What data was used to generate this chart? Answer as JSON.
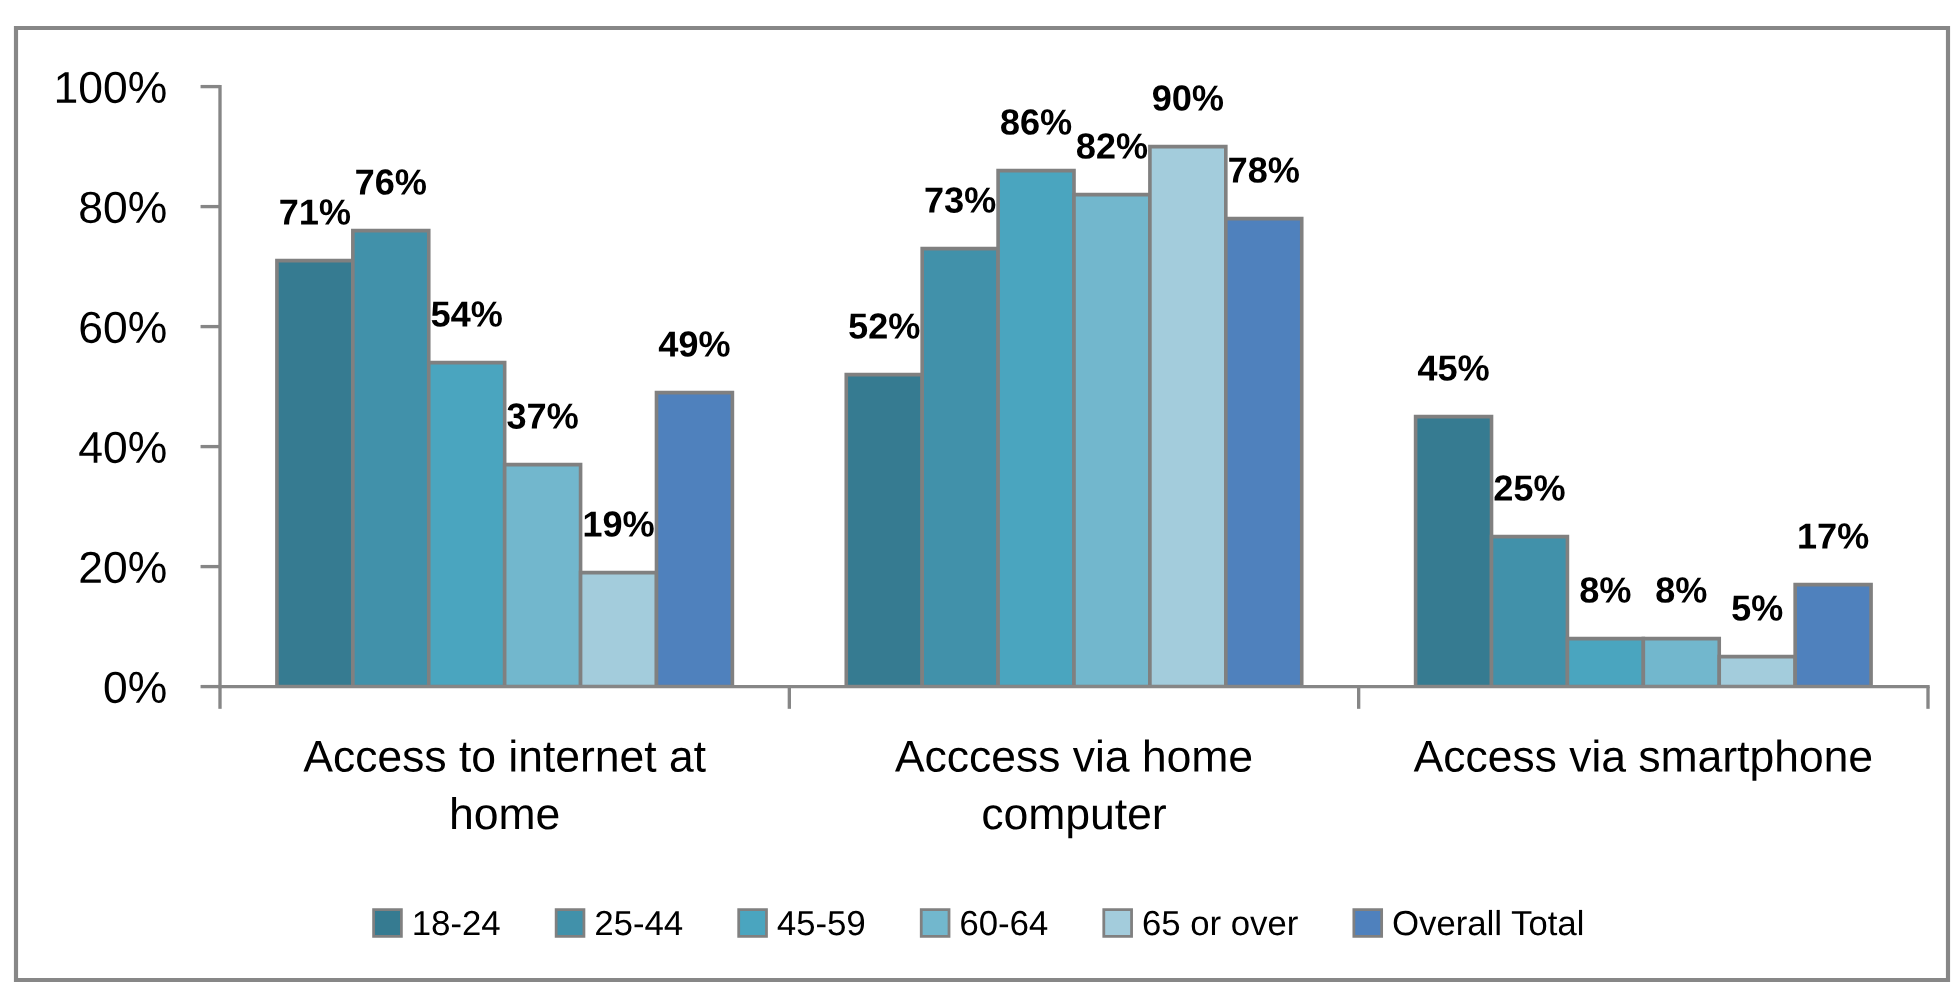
{
  "chart_data": {
    "type": "bar",
    "categories": [
      "Access to internet at home",
      "Acccess via home computer",
      "Access via smartphone"
    ],
    "series": [
      {
        "name": "18-24",
        "color": "#367b91",
        "values": [
          71,
          52,
          45
        ],
        "value_labels": [
          "71%",
          "52%",
          "45%"
        ]
      },
      {
        "name": "25-44",
        "color": "#4191aa",
        "values": [
          76,
          73,
          25
        ],
        "value_labels": [
          "76%",
          "73%",
          "25%"
        ]
      },
      {
        "name": "45-59",
        "color": "#4aa5bf",
        "values": [
          54,
          86,
          8
        ],
        "value_labels": [
          "54%",
          "86%",
          "8%"
        ]
      },
      {
        "name": "60-64",
        "color": "#72b7cd",
        "values": [
          37,
          82,
          8
        ],
        "value_labels": [
          "37%",
          "82%",
          "8%"
        ]
      },
      {
        "name": "65 or over",
        "color": "#a3ccdc",
        "values": [
          19,
          90,
          5
        ],
        "value_labels": [
          "19%",
          "90%",
          "5%"
        ]
      },
      {
        "name": "Overall Total",
        "color": "#4f81bd",
        "values": [
          49,
          78,
          17
        ],
        "value_labels": [
          "49%",
          "78%",
          "17%"
        ]
      }
    ],
    "ylim": [
      0,
      100
    ],
    "yticks": [
      {
        "value": 0,
        "label": "0%"
      },
      {
        "value": 20,
        "label": "20%"
      },
      {
        "value": 40,
        "label": "40%"
      },
      {
        "value": 60,
        "label": "60%"
      },
      {
        "value": 80,
        "label": "80%"
      },
      {
        "value": 100,
        "label": "100%"
      }
    ],
    "grid": false,
    "legend": "bottom"
  }
}
